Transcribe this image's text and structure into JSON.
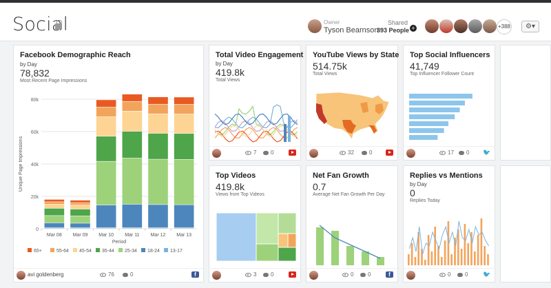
{
  "header": {
    "title": "Social",
    "owner_label": "Owner",
    "owner_name": "Tyson Bearnson",
    "shared_label": "Shared",
    "shared_count": "393 People",
    "more_count": "+388",
    "tools_label": "⚙▾"
  },
  "fb": {
    "title": "Facebook Demographic Reach",
    "subtitle": "by Day",
    "value": "78,832",
    "caption": "Most Recent Page Impressions",
    "footer_user": "avi goldenberg",
    "views": "76",
    "comments": "0",
    "chart_data": {
      "type": "bar",
      "stacked": true,
      "categories": [
        "Mar 08",
        "Mar 09",
        "Mar 10",
        "Mar 11",
        "Mar 12",
        "Mar 13"
      ],
      "xlabel": "Period",
      "ylabel": "Unique Page Impressions",
      "ylim": [
        0,
        80000
      ],
      "yticks": [
        "0",
        "20k",
        "40k",
        "60k",
        "80k"
      ],
      "series": [
        {
          "name": "13-17",
          "color": "#7ab3de",
          "values": [
            500,
            500,
            500,
            500,
            500,
            500
          ]
        },
        {
          "name": "18-24",
          "color": "#4c86bd",
          "values": [
            3000,
            2800,
            14000,
            14500,
            14300,
            14200
          ]
        },
        {
          "name": "25-34",
          "color": "#9dd27a",
          "values": [
            4500,
            4500,
            27000,
            28500,
            28000,
            28000
          ]
        },
        {
          "name": "35-44",
          "color": "#4ea54a",
          "values": [
            4500,
            4200,
            15500,
            16500,
            16000,
            16000
          ]
        },
        {
          "name": "45-54",
          "color": "#fdd493",
          "values": [
            2500,
            2500,
            12000,
            12500,
            12000,
            12000
          ]
        },
        {
          "name": "55-64",
          "color": "#f3a45c",
          "values": [
            1500,
            1500,
            6000,
            6000,
            6000,
            6000
          ]
        },
        {
          "name": "65+",
          "color": "#e95a22",
          "values": [
            1500,
            1500,
            4500,
            4500,
            4500,
            4500
          ]
        }
      ],
      "totals_unused": false,
      "legend": "bottom"
    }
  },
  "tve": {
    "title": "Total Video Engagement",
    "subtitle": "by Day",
    "value": "419.8k",
    "caption": "Total Views",
    "views": "7",
    "comments": "0"
  },
  "yt": {
    "title": "YouTube Views by State",
    "value": "514.75k",
    "caption": "Total Views",
    "views": "32",
    "comments": "0"
  },
  "tsi": {
    "title": "Top Social Influencers",
    "value": "41,749",
    "caption": "Top Influencer Follower Count",
    "views": "17",
    "comments": "0",
    "chart_data": {
      "type": "bar",
      "orientation": "horizontal",
      "values": [
        100,
        88,
        80,
        72,
        62,
        55,
        45
      ],
      "color": "#8cc6ec"
    }
  },
  "tv": {
    "title": "Top Videos",
    "value": "419.8k",
    "caption": "Views from Top Videos",
    "views": "3",
    "comments": "0",
    "chart_data": {
      "type": "treemap",
      "values": [
        40,
        28,
        10,
        8,
        5,
        3
      ]
    }
  },
  "nfg": {
    "title": "Net Fan Growth",
    "value": "0.7",
    "caption": "Average Net Fan Growth Per Day",
    "views": "0",
    "comments": "0",
    "chart_data": {
      "type": "bar",
      "values": [
        55,
        50,
        28,
        20,
        12
      ],
      "line": [
        58,
        40,
        30,
        20,
        10
      ],
      "color": "#9dd27a",
      "line_color": "#4c86bd"
    }
  },
  "rvm": {
    "title": "Replies vs Mentions",
    "subtitle": "by Day",
    "value": "0",
    "caption": "Replies Today",
    "views": "0",
    "comments": "0",
    "chart_data": {
      "type": "bar",
      "orange": [
        20,
        40,
        15,
        60,
        30,
        10,
        55,
        25,
        70,
        35,
        15,
        45,
        80,
        20,
        50,
        65,
        30,
        75,
        40,
        60,
        25,
        55,
        85,
        35,
        20
      ],
      "blue": [
        30,
        50,
        25,
        70,
        20,
        40,
        35,
        60,
        45,
        30,
        55,
        70,
        40,
        60,
        35,
        80,
        50,
        45,
        65,
        40,
        70,
        55,
        60,
        45,
        35
      ]
    }
  }
}
